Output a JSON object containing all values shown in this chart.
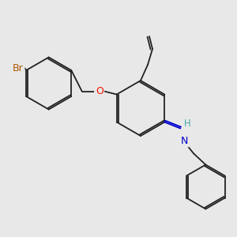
{
  "bg_color": "#e8e8e8",
  "atom_colors": {
    "Br": "#b05a00",
    "O": "#ee1100",
    "N": "#0000cc",
    "C": "#000000",
    "H": "#44aaaa"
  },
  "bond_color": "#222222",
  "lw": 1.3
}
